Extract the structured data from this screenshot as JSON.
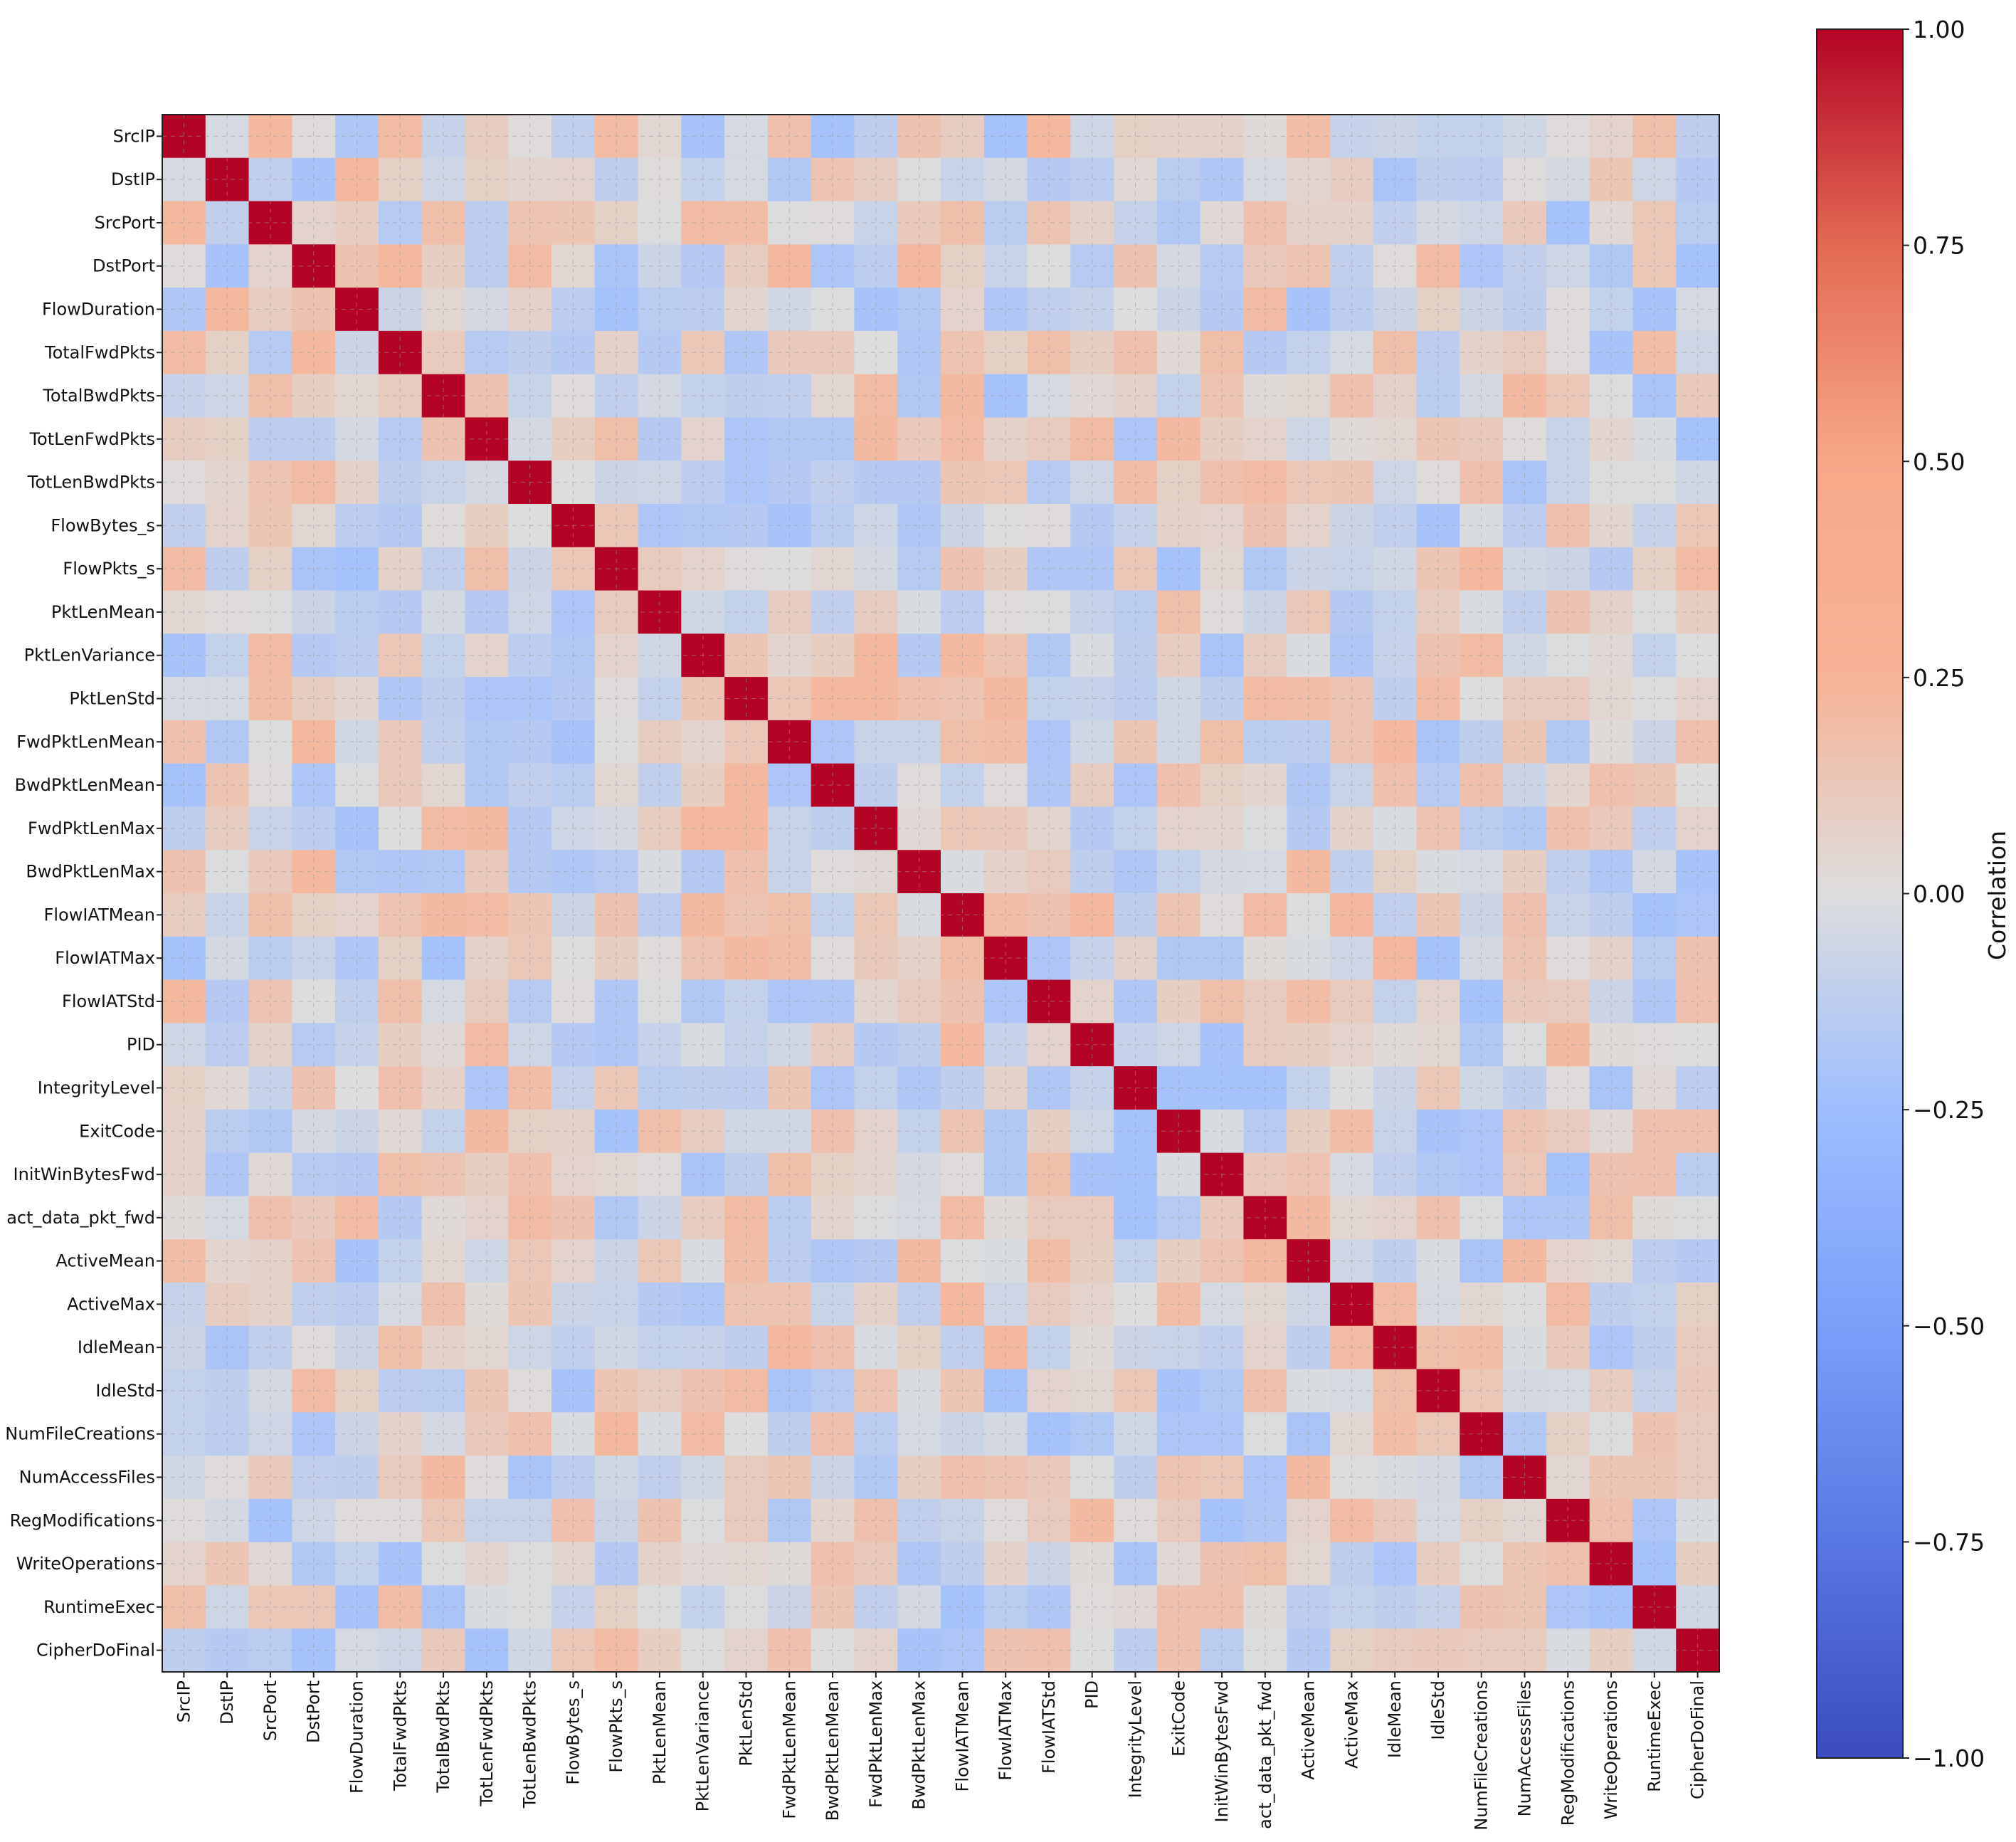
{
  "chart_data": {
    "type": "heatmap",
    "title": "",
    "xlabel": "",
    "ylabel": "",
    "variables": [
      "SrcIP",
      "DstIP",
      "SrcPort",
      "DstPort",
      "FlowDuration",
      "TotalFwdPkts",
      "TotalBwdPkts",
      "TotLenFwdPkts",
      "TotLenBwdPkts",
      "FlowBytes_s",
      "FlowPkts_s",
      "PktLenMean",
      "PktLenVariance",
      "PktLenStd",
      "FwdPktLenMean",
      "BwdPktLenMean",
      "FwdPktLenMax",
      "BwdPktLenMax",
      "FlowIATMean",
      "FlowIATMax",
      "FlowIATStd",
      "PID",
      "IntegrityLevel",
      "ExitCode",
      "InitWinBytesFwd",
      "act_data_pkt_fwd",
      "ActiveMean",
      "ActiveMax",
      "IdleMean",
      "IdleStd",
      "NumFileCreations",
      "NumAccessFiles",
      "RegModifications",
      "WriteOperations",
      "RuntimeExec",
      "CipherDoFinal"
    ],
    "diagonal_value": 1.0,
    "off_diagonal_range": [
      -0.3,
      0.3
    ],
    "colorbar": {
      "label": "Correlation",
      "range": [
        -1.0,
        1.0
      ],
      "ticks": [
        1.0,
        0.75,
        0.5,
        0.25,
        0.0,
        -0.25,
        -0.5,
        -0.75,
        -1.0
      ],
      "tick_labels": [
        "1.00",
        "0.75",
        "0.50",
        "0.25",
        "0.00",
        "−0.25",
        "−0.50",
        "−0.75",
        "−1.00"
      ],
      "colormap": "coolwarm",
      "low_color": "#3b4cc0",
      "mid_color": "#dddddd",
      "high_color": "#b40426"
    },
    "grid": true
  }
}
